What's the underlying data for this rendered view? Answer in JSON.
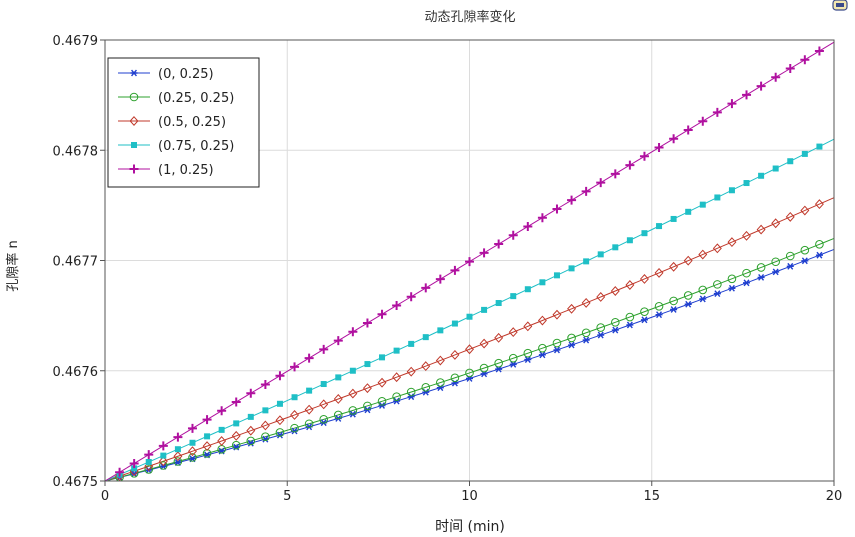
{
  "chart_data": {
    "type": "line",
    "title": "动态孔隙率变化",
    "xlabel": "时间 (min)",
    "ylabel": "孔隙率 n",
    "xlim": [
      0,
      20
    ],
    "ylim": [
      0.4675,
      0.4679
    ],
    "x_ticks": [
      "0",
      "5",
      "10",
      "15",
      "20"
    ],
    "y_ticks": [
      "0.4675",
      "0.4676",
      "0.4677",
      "0.4678",
      "0.4679"
    ],
    "grid": true,
    "legend_position": "top-left",
    "marker_x": [
      0.4,
      0.8,
      1.2,
      1.6,
      2.0,
      2.4,
      2.8,
      3.2,
      3.6,
      4.0,
      4.4,
      4.8,
      5.2,
      5.6,
      6.0,
      6.4,
      6.8,
      7.2,
      7.6,
      8.0,
      8.4,
      8.8,
      9.2,
      9.6,
      10.0,
      10.4,
      10.8,
      11.2,
      11.6,
      12.0,
      12.4,
      12.8,
      13.2,
      13.6,
      14.0,
      14.4,
      14.8,
      15.2,
      15.6,
      16.0,
      16.4,
      16.8,
      17.2,
      17.6,
      18.0,
      18.4,
      18.8,
      19.2,
      19.6
    ],
    "series": [
      {
        "name": "(0, 0.25)",
        "color": "#1f3fcf",
        "marker": "asterisk",
        "y_start": 0.4675,
        "y_end": 0.46771,
        "curvature": 1.2e-05
      },
      {
        "name": "(0.25, 0.25)",
        "color": "#2ca02c",
        "marker": "circle",
        "y_start": 0.4675,
        "y_end": 0.46772,
        "curvature": 1.2e-05
      },
      {
        "name": "(0.5, 0.25)",
        "color": "#c0392b",
        "marker": "diamond",
        "y_start": 0.4675,
        "y_end": 0.467757,
        "curvature": 9e-06
      },
      {
        "name": "(0.75, 0.25)",
        "color": "#1fbfc6",
        "marker": "square",
        "y_start": 0.4675,
        "y_end": 0.46781,
        "curvature": 6e-06
      },
      {
        "name": "(1, 0.25)",
        "color": "#b0109f",
        "marker": "plus",
        "y_start": 0.4675,
        "y_end": 0.467898,
        "curvature": 0.0
      }
    ]
  }
}
